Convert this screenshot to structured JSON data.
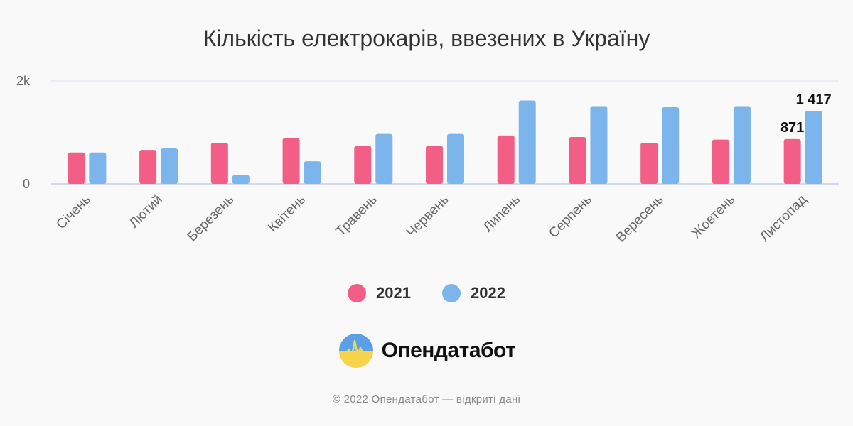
{
  "chart_data": {
    "type": "bar",
    "title": "Кількість електрокарів, ввезених в Україну",
    "categories": [
      "Січень",
      "Лютий",
      "Березень",
      "Квітень",
      "Травень",
      "Червень",
      "Липень",
      "Серпень",
      "Вересень",
      "Жовтень",
      "Листопад"
    ],
    "series": [
      {
        "name": "2021",
        "color": "#f25e86",
        "values": [
          610,
          660,
          800,
          890,
          740,
          740,
          940,
          910,
          800,
          860,
          871
        ]
      },
      {
        "name": "2022",
        "color": "#7cb5ec",
        "values": [
          610,
          690,
          170,
          440,
          970,
          970,
          1620,
          1510,
          1490,
          1510,
          1417
        ]
      }
    ],
    "ylim": [
      0,
      2000
    ],
    "yticks": [
      {
        "value": 0,
        "label": "0"
      },
      {
        "value": 2000,
        "label": "2k"
      }
    ],
    "data_labels": [
      {
        "series": 0,
        "index": 10,
        "text": "871"
      },
      {
        "series": 1,
        "index": 10,
        "text": "1 417"
      }
    ],
    "xlabel": "",
    "ylabel": "",
    "grid": true,
    "legend_position": "bottom"
  },
  "branding": {
    "name": "Опендатабот",
    "logo_icon": "opendatabot-logo-icon"
  },
  "footer": {
    "text": "© 2022 Опендатабот — відкриті дані"
  }
}
